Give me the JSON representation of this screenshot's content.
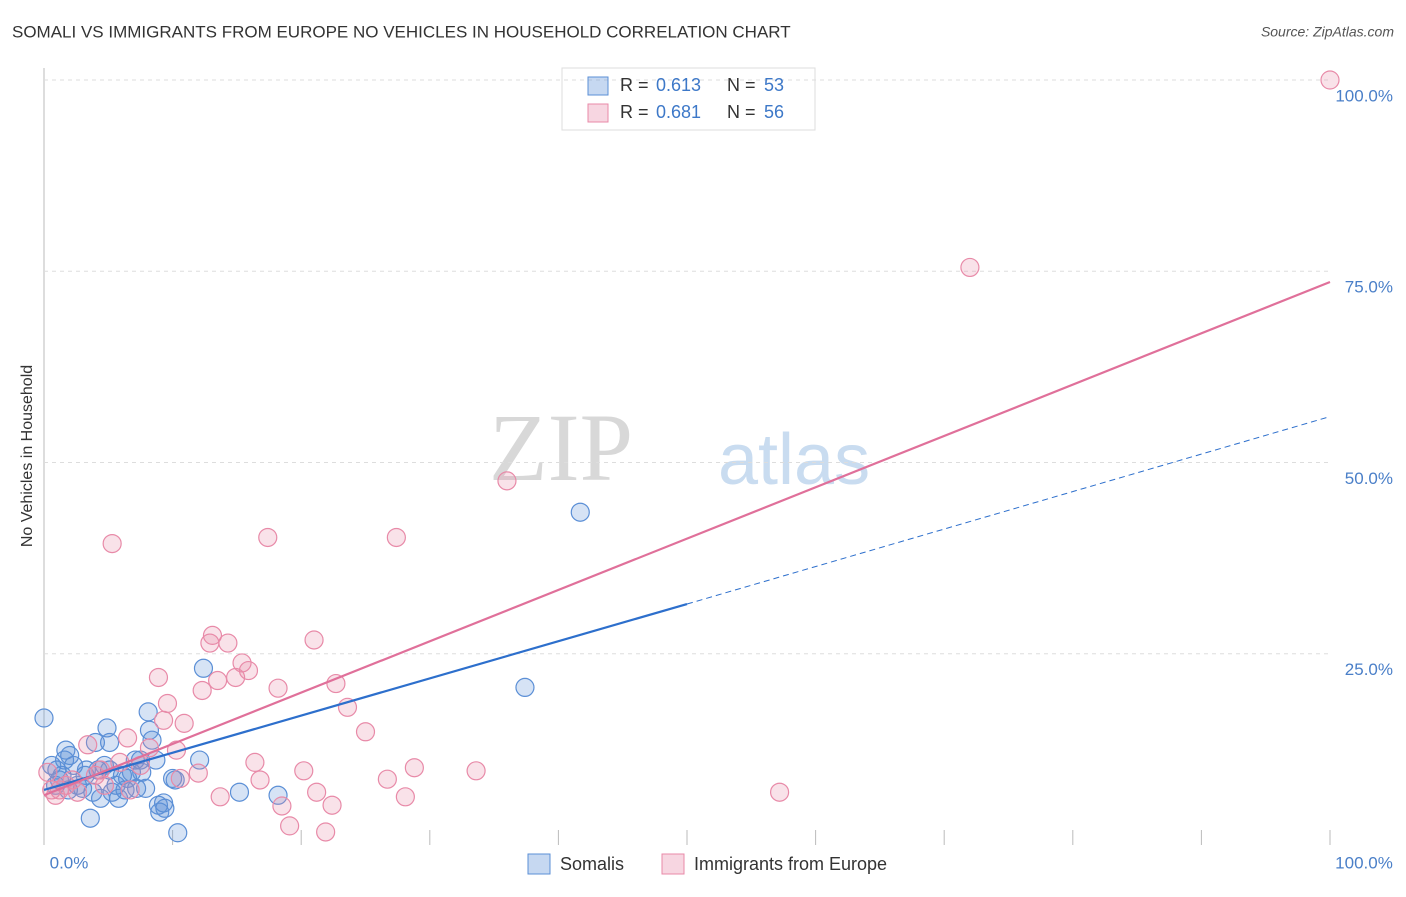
{
  "chart_data": {
    "type": "scatter",
    "title": "SOMALI VS IMMIGRANTS FROM EUROPE NO VEHICLES IN HOUSEHOLD CORRELATION CHART",
    "source": "Source: ZipAtlas.com",
    "y_label": "No Vehicles in Household",
    "watermark": [
      "ZIP",
      "atlas"
    ],
    "xlim": [
      0,
      100
    ],
    "ylim": [
      0,
      100
    ],
    "xticks": [
      {
        "value": 0,
        "label": "0.0%"
      },
      {
        "value": 100,
        "label": "100.0%"
      }
    ],
    "xtick_marks": [
      0,
      10,
      20,
      30,
      40,
      50,
      60,
      70,
      80,
      90,
      100
    ],
    "yticks": [
      {
        "value": 25,
        "label": "25.0%"
      },
      {
        "value": 50,
        "label": "50.0%"
      },
      {
        "value": 75,
        "label": "75.0%"
      },
      {
        "value": 100,
        "label": "100.0%"
      }
    ],
    "grid": true,
    "legend": {
      "r_label": "R =",
      "n_label": "N ="
    },
    "series": [
      {
        "name": "Somalis",
        "color": "#5b8fd6",
        "line_color": "#2d6fcc",
        "r": 0.613,
        "n": 53,
        "trend": {
          "x": [
            0,
            50,
            100
          ],
          "y": [
            7.2,
            31.5,
            56.0
          ]
        },
        "trend_dashed_after": 50,
        "x": [
          0,
          0.6,
          1.0,
          1.4,
          1.7,
          2.0,
          2.3,
          2.6,
          3.0,
          3.3,
          3.6,
          4.0,
          4.4,
          4.7,
          4.9,
          5.1,
          5.3,
          5.6,
          5.8,
          6.1,
          6.5,
          6.8,
          7.2,
          7.5,
          7.6,
          7.9,
          8.1,
          8.4,
          8.7,
          9.0,
          9.3,
          9.4,
          10.0,
          10.4,
          12.1,
          12.4,
          15.2,
          18.2,
          37.4,
          41.7,
          0.9,
          1.2,
          1.9,
          3.2,
          3.8,
          4.2,
          5.1,
          6.3,
          7.1,
          8.2,
          8.9,
          10.2,
          1.6
        ],
        "values": [
          16.6,
          10.4,
          9.8,
          9.1,
          12.4,
          11.7,
          10.4,
          7.8,
          7.4,
          9.8,
          3.5,
          13.4,
          6.1,
          10.4,
          15.3,
          13.4,
          6.9,
          7.8,
          6.1,
          9.1,
          8.7,
          9.5,
          7.4,
          11.1,
          9.5,
          7.4,
          17.4,
          13.7,
          11.1,
          4.3,
          5.5,
          4.8,
          8.7,
          1.6,
          11.1,
          23.1,
          6.9,
          6.5,
          20.6,
          43.5,
          7.8,
          8.5,
          7.2,
          9.1,
          6.9,
          9.8,
          9.8,
          7.2,
          11.1,
          15.0,
          5.2,
          8.5,
          11.1
        ]
      },
      {
        "name": "Immigrants from Europe",
        "color": "#e88aa8",
        "line_color": "#e0709a",
        "r": 0.681,
        "n": 56,
        "trend": {
          "x": [
            0,
            100
          ],
          "y": [
            6.5,
            73.6
          ]
        },
        "x": [
          100,
          72.0,
          36.0,
          5.3,
          17.4,
          27.4,
          21.0,
          13.1,
          14.3,
          12.9,
          15.4,
          15.9,
          14.9,
          8.9,
          13.5,
          12.3,
          18.2,
          22.7,
          9.6,
          9.3,
          23.6,
          10.9,
          6.5,
          25.0,
          8.2,
          3.4,
          16.4,
          5.9,
          10.3,
          28.8,
          33.6,
          20.2,
          26.7,
          12.0,
          16.8,
          10.6,
          57.2,
          21.2,
          28.1,
          13.7,
          18.5,
          22.4,
          19.1,
          21.9,
          0.6,
          0.9,
          1.2,
          1.7,
          2.2,
          2.6,
          4.0,
          4.7,
          7.5,
          4.4,
          0.3,
          6.7
        ],
        "values": [
          100,
          75.5,
          47.6,
          39.4,
          40.2,
          40.2,
          26.8,
          27.4,
          26.4,
          26.4,
          23.8,
          22.8,
          21.9,
          21.9,
          21.5,
          20.2,
          20.5,
          21.1,
          18.5,
          16.3,
          18.0,
          15.9,
          14.0,
          14.8,
          12.7,
          13.1,
          10.8,
          10.8,
          12.4,
          10.1,
          9.7,
          9.7,
          8.6,
          9.4,
          8.5,
          8.7,
          6.9,
          6.9,
          6.3,
          6.3,
          5.1,
          5.2,
          2.5,
          1.7,
          7.2,
          6.5,
          7.2,
          7.8,
          8.5,
          6.9,
          9.1,
          7.8,
          10.4,
          9.8,
          9.5,
          7.2
        ]
      }
    ]
  }
}
